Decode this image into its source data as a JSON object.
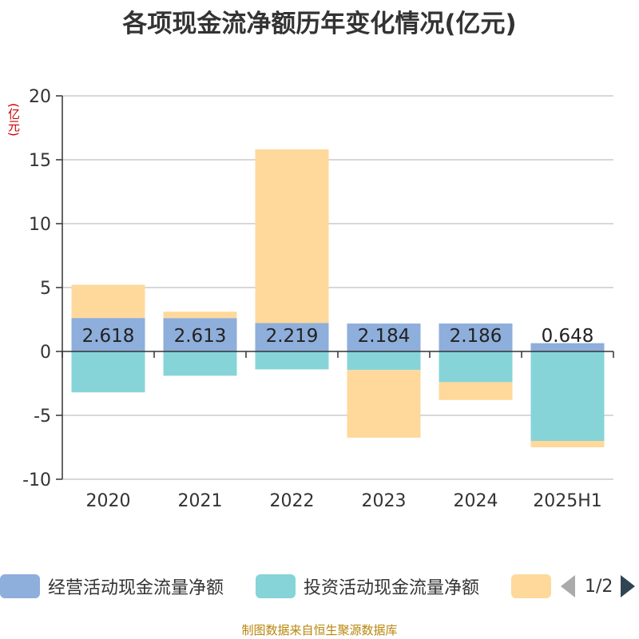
{
  "title": "各项现金流净额历年变化情况(亿元)",
  "unit_label": "(亿元)",
  "source": "制图数据来自恒生聚源数据库",
  "pager": {
    "text": "1/2"
  },
  "colors": {
    "operating": "#8eaedb",
    "investing": "#86d4d8",
    "financing": "#fed99b",
    "grid": "#cccccc",
    "axis": "#333333"
  },
  "legend": [
    {
      "name": "经营活动现金流量净额",
      "color": "#8eaedb"
    },
    {
      "name": "投资活动现金流量净额",
      "color": "#86d4d8"
    },
    {
      "name": "",
      "color": "#fed99b"
    }
  ],
  "chart_data": {
    "type": "bar",
    "stacked": true,
    "title": "各项现金流净额历年变化情况(亿元)",
    "ylabel": "(亿元)",
    "ylim": [
      -10,
      20
    ],
    "yticks": [
      20,
      15,
      10,
      5,
      0,
      -5,
      -10
    ],
    "grid": true,
    "legend_position": "bottom",
    "categories": [
      "2020",
      "2021",
      "2022",
      "2023",
      "2024",
      "2025H1"
    ],
    "series": [
      {
        "name": "经营活动现金流量净额",
        "values": [
          2.618,
          2.613,
          2.219,
          2.184,
          2.186,
          0.648
        ]
      },
      {
        "name": "投资活动现金流量净额",
        "values": [
          -3.2,
          -1.9,
          -1.4,
          -1.45,
          -2.4,
          -7.0
        ]
      },
      {
        "name": "",
        "values": [
          2.6,
          0.5,
          13.6,
          -5.3,
          -1.4,
          -0.5
        ]
      }
    ],
    "data_labels": [
      "2.618",
      "2.613",
      "2.219",
      "2.184",
      "2.186",
      "0.648"
    ]
  }
}
